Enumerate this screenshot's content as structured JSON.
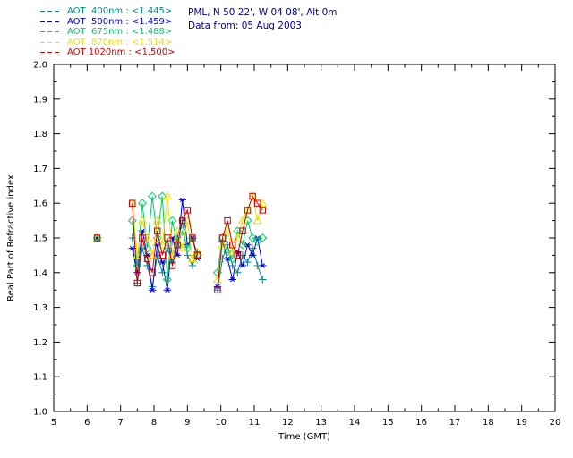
{
  "header": {
    "line1": "PML, N 50 22', W 04 08', Alt 0m",
    "line2": "Data from: 05 Aug 2003",
    "color": "#000099"
  },
  "legend": {
    "items": [
      {
        "label": "AOT  400nm : <1.445>",
        "color": "#008B8B",
        "dash": "5,3"
      },
      {
        "label": "AOT  500nm : <1.459>",
        "color": "#0000DD",
        "dash": "5,3"
      },
      {
        "label": "AOT  675nm : <1.488>",
        "color": "#00CC66",
        "dash": "5,3"
      },
      {
        "label": "AOT  870nm : <1.514>",
        "color": "#EEDD00",
        "dash": "5,3"
      },
      {
        "label": "AOT 1020nm : <1.500>",
        "color": "#CC0000",
        "dash": "5,3"
      }
    ]
  },
  "chart_data": {
    "type": "line",
    "title": "",
    "xlabel": "Time (GMT)",
    "ylabel": "Real Part of Refractive index",
    "xlim": [
      5,
      20
    ],
    "ylim": [
      1.0,
      2.0
    ],
    "xticks": [
      5,
      6,
      7,
      8,
      9,
      10,
      11,
      12,
      13,
      14,
      15,
      16,
      17,
      18,
      19,
      20
    ],
    "yticks": [
      1.0,
      1.1,
      1.2,
      1.3,
      1.4,
      1.5,
      1.6,
      1.7,
      1.8,
      1.9,
      2.0
    ],
    "grid": false,
    "legend_position": "top-left",
    "series": [
      {
        "name": "AOT 400nm",
        "mean": 1.445,
        "color": "#008B8B",
        "marker": "plus",
        "segments": [
          [
            [
              6.3,
              1.5
            ]
          ],
          [
            [
              7.35,
              1.5
            ],
            [
              7.5,
              1.37
            ],
            [
              7.65,
              1.47
            ],
            [
              7.8,
              1.42
            ],
            [
              7.95,
              1.36
            ],
            [
              8.1,
              1.45
            ],
            [
              8.25,
              1.4
            ],
            [
              8.4,
              1.47
            ],
            [
              8.55,
              1.43
            ],
            [
              8.7,
              1.5
            ],
            [
              8.85,
              1.55
            ],
            [
              9.0,
              1.45
            ],
            [
              9.15,
              1.42
            ],
            [
              9.3,
              1.46
            ]
          ],
          [
            [
              9.9,
              1.35
            ],
            [
              10.05,
              1.44
            ],
            [
              10.2,
              1.48
            ],
            [
              10.35,
              1.42
            ],
            [
              10.5,
              1.4
            ],
            [
              10.65,
              1.45
            ],
            [
              10.8,
              1.43
            ],
            [
              10.95,
              1.47
            ],
            [
              11.1,
              1.42
            ],
            [
              11.25,
              1.38
            ]
          ]
        ]
      },
      {
        "name": "AOT 500nm",
        "mean": 1.459,
        "color": "#0000DD",
        "marker": "asterisk",
        "segments": [
          [
            [
              6.3,
              1.5
            ]
          ],
          [
            [
              7.35,
              1.47
            ],
            [
              7.5,
              1.4
            ],
            [
              7.65,
              1.52
            ],
            [
              7.8,
              1.45
            ],
            [
              7.95,
              1.35
            ],
            [
              8.1,
              1.48
            ],
            [
              8.25,
              1.43
            ],
            [
              8.4,
              1.35
            ],
            [
              8.55,
              1.5
            ],
            [
              8.7,
              1.45
            ],
            [
              8.85,
              1.61
            ],
            [
              9.0,
              1.48
            ],
            [
              9.15,
              1.5
            ],
            [
              9.3,
              1.44
            ]
          ],
          [
            [
              9.9,
              1.36
            ],
            [
              10.05,
              1.49
            ],
            [
              10.2,
              1.44
            ],
            [
              10.35,
              1.38
            ],
            [
              10.5,
              1.46
            ],
            [
              10.65,
              1.42
            ],
            [
              10.8,
              1.48
            ],
            [
              10.95,
              1.45
            ],
            [
              11.1,
              1.5
            ],
            [
              11.25,
              1.42
            ]
          ]
        ]
      },
      {
        "name": "AOT 675nm",
        "mean": 1.488,
        "color": "#00CC66",
        "marker": "diamond",
        "segments": [
          [
            [
              6.3,
              1.5
            ]
          ],
          [
            [
              7.35,
              1.55
            ],
            [
              7.5,
              1.42
            ],
            [
              7.65,
              1.6
            ],
            [
              7.8,
              1.47
            ],
            [
              7.95,
              1.62
            ],
            [
              8.1,
              1.5
            ],
            [
              8.25,
              1.62
            ],
            [
              8.4,
              1.38
            ],
            [
              8.55,
              1.55
            ],
            [
              8.7,
              1.48
            ],
            [
              8.85,
              1.52
            ],
            [
              9.0,
              1.47
            ],
            [
              9.15,
              1.5
            ],
            [
              9.3,
              1.45
            ]
          ],
          [
            [
              9.9,
              1.4
            ],
            [
              10.05,
              1.5
            ],
            [
              10.2,
              1.46
            ],
            [
              10.35,
              1.44
            ],
            [
              10.5,
              1.52
            ],
            [
              10.65,
              1.48
            ],
            [
              10.8,
              1.55
            ],
            [
              10.95,
              1.5
            ],
            [
              11.1,
              1.49
            ],
            [
              11.25,
              1.5
            ]
          ]
        ]
      },
      {
        "name": "AOT 870nm",
        "mean": 1.514,
        "color": "#EEDD00",
        "marker": "triangle",
        "segments": [
          [
            [
              6.3,
              1.5
            ]
          ],
          [
            [
              7.35,
              1.6
            ],
            [
              7.5,
              1.45
            ],
            [
              7.65,
              1.55
            ],
            [
              7.8,
              1.5
            ],
            [
              7.95,
              1.45
            ],
            [
              8.1,
              1.55
            ],
            [
              8.25,
              1.48
            ],
            [
              8.4,
              1.62
            ],
            [
              8.55,
              1.45
            ],
            [
              8.7,
              1.52
            ],
            [
              8.85,
              1.47
            ],
            [
              9.0,
              1.55
            ],
            [
              9.15,
              1.44
            ],
            [
              9.3,
              1.46
            ]
          ],
          [
            [
              9.9,
              1.38
            ],
            [
              10.05,
              1.48
            ],
            [
              10.2,
              1.52
            ],
            [
              10.35,
              1.46
            ],
            [
              10.5,
              1.5
            ],
            [
              10.65,
              1.55
            ],
            [
              10.8,
              1.58
            ],
            [
              10.95,
              1.62
            ],
            [
              11.1,
              1.55
            ],
            [
              11.25,
              1.6
            ]
          ]
        ]
      },
      {
        "name": "AOT 1020nm",
        "mean": 1.5,
        "color": "#CC0000",
        "marker": "square",
        "segments": [
          [
            [
              6.3,
              1.5
            ]
          ],
          [
            [
              7.35,
              1.6
            ],
            [
              7.5,
              1.37
            ],
            [
              7.65,
              1.5
            ],
            [
              7.8,
              1.44
            ],
            [
              7.95,
              1.4
            ],
            [
              8.1,
              1.52
            ],
            [
              8.25,
              1.45
            ],
            [
              8.4,
              1.5
            ],
            [
              8.55,
              1.42
            ],
            [
              8.7,
              1.48
            ],
            [
              8.85,
              1.55
            ],
            [
              9.0,
              1.58
            ],
            [
              9.15,
              1.5
            ],
            [
              9.3,
              1.45
            ]
          ],
          [
            [
              9.9,
              1.35
            ],
            [
              10.05,
              1.5
            ],
            [
              10.2,
              1.55
            ],
            [
              10.35,
              1.48
            ],
            [
              10.5,
              1.45
            ],
            [
              10.65,
              1.52
            ],
            [
              10.8,
              1.58
            ],
            [
              10.95,
              1.62
            ],
            [
              11.1,
              1.6
            ],
            [
              11.25,
              1.58
            ]
          ]
        ]
      }
    ]
  }
}
